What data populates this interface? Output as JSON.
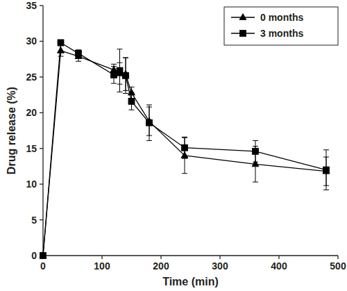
{
  "chart_data": {
    "type": "line",
    "x_label": "Time (min)",
    "y_label": "Drug release (%)",
    "x": [
      0,
      30,
      60,
      120,
      130,
      140,
      150,
      180,
      240,
      360,
      480
    ],
    "series": [
      {
        "name": "0 months",
        "color": "#000000",
        "marker": "triangle",
        "line_style": "solid",
        "values": [
          0,
          28.7,
          27.9,
          26.0,
          25.5,
          25.4,
          22.8,
          18.8,
          14.0,
          12.8,
          11.8
        ],
        "errors": [
          0,
          0.8,
          0.7,
          0.8,
          1.5,
          2.3,
          0.8,
          2.0,
          2.5,
          2.5,
          2.0
        ]
      },
      {
        "name": "3 months",
        "color": "#000000",
        "marker": "square",
        "line_style": "solid",
        "values": [
          0,
          29.8,
          28.3,
          25.3,
          25.9,
          25.2,
          21.6,
          18.6,
          15.1,
          14.6,
          12.0
        ],
        "errors": [
          0,
          0.4,
          0.5,
          1.2,
          3.0,
          2.5,
          1.2,
          2.5,
          1.5,
          1.5,
          2.8
        ]
      }
    ],
    "xlim": [
      0,
      500
    ],
    "xticks": [
      0,
      100,
      200,
      300,
      400,
      500
    ],
    "ylim": [
      0,
      35
    ],
    "yticks": [
      0,
      5,
      10,
      15,
      20,
      25,
      30,
      35
    ],
    "grid": false,
    "legend": "top-right"
  }
}
